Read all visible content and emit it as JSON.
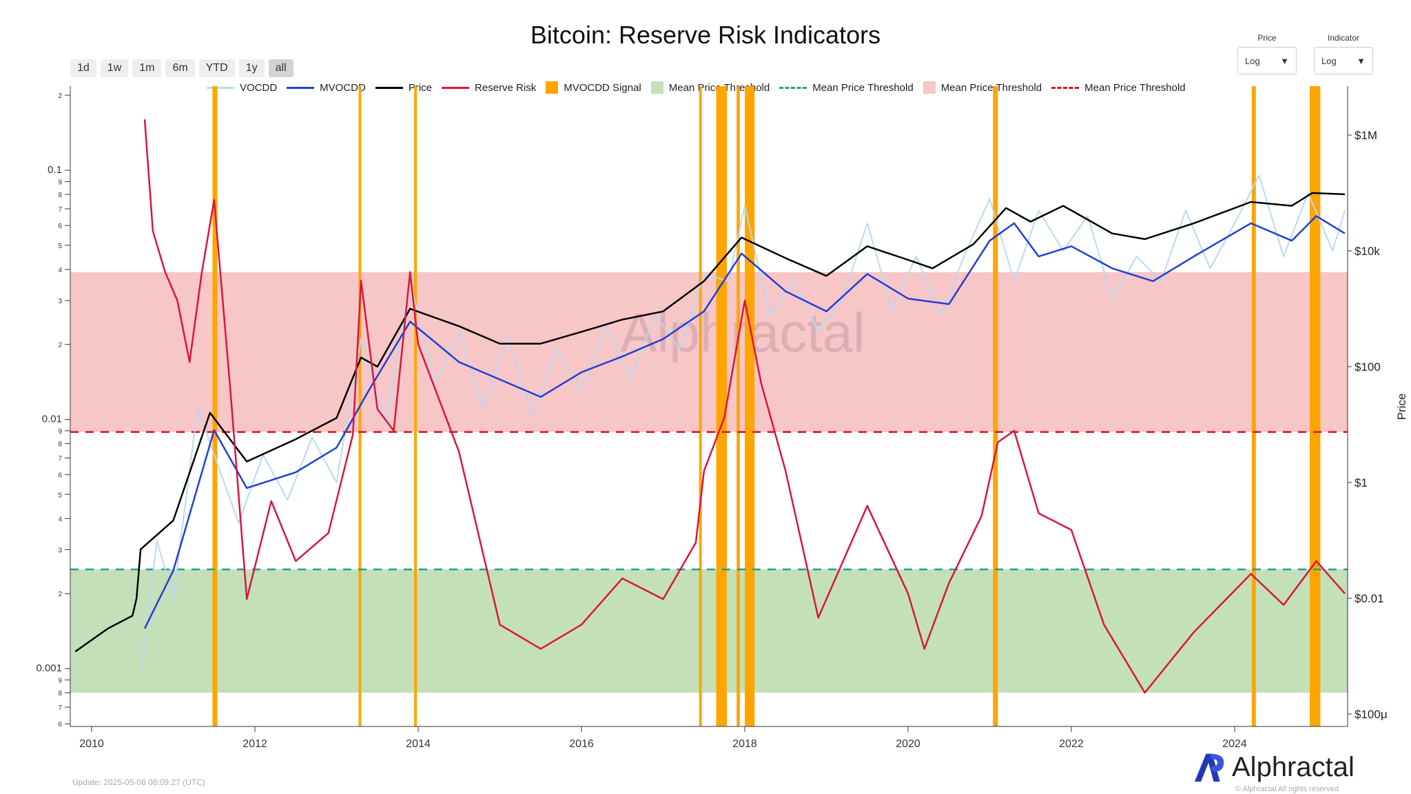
{
  "title": "Bitcoin: Reserve Risk Indicators",
  "range_buttons": [
    "1d",
    "1w",
    "1m",
    "6m",
    "YTD",
    "1y",
    "all"
  ],
  "range_selected": "all",
  "selectors": {
    "price": {
      "label": "Price",
      "value": "Log"
    },
    "indicator": {
      "label": "Indicator",
      "value": "Log"
    }
  },
  "legend": [
    {
      "label": "VOCDD",
      "kind": "line",
      "color": "#b9d9f3"
    },
    {
      "label": "MVOCDD",
      "kind": "line",
      "color": "#1f3fd6"
    },
    {
      "label": "Price",
      "kind": "line",
      "color": "#000000"
    },
    {
      "label": "Reserve Risk",
      "kind": "line",
      "color": "#dc143c"
    },
    {
      "label": "MVOCDD Signal",
      "kind": "box",
      "color": "#ffa500"
    },
    {
      "label": "Mean Price Threshold",
      "kind": "box",
      "color": "#c3e0b9"
    },
    {
      "label": "Mean Price Threshold",
      "kind": "dash",
      "color": "#20a090"
    },
    {
      "label": "Mean Price Threshold",
      "kind": "box",
      "color": "#f7c6c7"
    },
    {
      "label": "Mean Price Threshold",
      "kind": "dash",
      "color": "#e01010"
    }
  ],
  "update_text": "Update: 2025-05-08 08:09:27 (UTC)",
  "logo_text": "Alphractal",
  "copyright": "© Alphractal All rights reserved",
  "watermark": "Alphractal",
  "chart_data": {
    "type": "line",
    "title": "Bitcoin: Reserve Risk Indicators",
    "x_ticks": [
      "2010",
      "2012",
      "2014",
      "2016",
      "2018",
      "2020",
      "2022",
      "2024"
    ],
    "xlim": [
      2009.75,
      2025.4
    ],
    "left_axis": {
      "scale": "log",
      "ylim": [
        0.0006,
        0.22
      ],
      "major_labels": [
        "0.1",
        "0.01",
        "0.001"
      ],
      "minor_labels": [
        "2",
        "9",
        "8",
        "7",
        "6",
        "5",
        "4",
        "3",
        "2",
        "9",
        "8",
        "7",
        "6",
        "5",
        "4",
        "3",
        "2",
        "9",
        "8",
        "7",
        "6"
      ]
    },
    "right_axis": {
      "scale": "log",
      "label": "Price",
      "ylim": [
        6e-05,
        4000000
      ],
      "tick_labels": [
        "$1M",
        "$10k",
        "$100",
        "$1",
        "$0.01",
        "$100μ"
      ]
    },
    "bands": [
      {
        "name": "Mean Price Threshold",
        "range": [
          0.0089,
          0.039
        ],
        "color": "#f7c6c7",
        "line": 0.0089,
        "line_color": "#e01010"
      },
      {
        "name": "Mean Price Threshold",
        "range": [
          0.0008,
          0.0025
        ],
        "color": "#c3e0b9",
        "line": 0.0025,
        "line_color": "#20a090"
      }
    ],
    "signals": [
      [
        2011.48,
        2011.54
      ],
      [
        2013.27,
        2013.3
      ],
      [
        2013.95,
        2013.98
      ],
      [
        2017.44,
        2017.47
      ],
      [
        2017.65,
        2017.78
      ],
      [
        2017.9,
        2017.94
      ],
      [
        2018.0,
        2018.12
      ],
      [
        2021.04,
        2021.1
      ],
      [
        2024.21,
        2024.26
      ],
      [
        2024.92,
        2025.05
      ]
    ],
    "series": [
      {
        "name": "Reserve Risk",
        "axis": "left",
        "color": "#dc143c",
        "x": [
          2010.65,
          2010.75,
          2010.9,
          2011.05,
          2011.2,
          2011.35,
          2011.5,
          2011.7,
          2011.9,
          2012.2,
          2012.5,
          2012.9,
          2013.2,
          2013.3,
          2013.5,
          2013.7,
          2013.9,
          2014.0,
          2014.5,
          2015.0,
          2015.5,
          2016.0,
          2016.5,
          2017.0,
          2017.4,
          2017.5,
          2017.75,
          2018.0,
          2018.2,
          2018.5,
          2018.9,
          2019.5,
          2020.0,
          2020.2,
          2020.5,
          2020.9,
          2021.1,
          2021.3,
          2021.6,
          2022.0,
          2022.4,
          2022.9,
          2023.5,
          2024.2,
          2024.6,
          2025.0,
          2025.35
        ],
        "y": [
          0.16,
          0.057,
          0.039,
          0.03,
          0.017,
          0.039,
          0.076,
          0.013,
          0.0019,
          0.0047,
          0.0027,
          0.0035,
          0.0087,
          0.036,
          0.011,
          0.009,
          0.039,
          0.02,
          0.0074,
          0.0015,
          0.0012,
          0.0015,
          0.0023,
          0.0019,
          0.0032,
          0.0062,
          0.0102,
          0.03,
          0.014,
          0.0062,
          0.0016,
          0.0045,
          0.002,
          0.0012,
          0.0022,
          0.0041,
          0.0081,
          0.009,
          0.0042,
          0.0036,
          0.0015,
          0.0008,
          0.0014,
          0.0024,
          0.0018,
          0.0027,
          0.002
        ]
      },
      {
        "name": "Price",
        "axis": "right",
        "color": "#000000",
        "x": [
          2009.8,
          2010.2,
          2010.5,
          2010.55,
          2010.6,
          2011.0,
          2011.45,
          2011.9,
          2012.5,
          2013.0,
          2013.3,
          2013.5,
          2013.9,
          2014.5,
          2015.0,
          2015.5,
          2016.0,
          2016.5,
          2017.0,
          2017.5,
          2017.96,
          2018.5,
          2019.0,
          2019.5,
          2020.0,
          2020.3,
          2020.8,
          2021.2,
          2021.5,
          2021.9,
          2022.5,
          2022.9,
          2023.5,
          2024.2,
          2024.7,
          2024.95,
          2025.35
        ],
        "y": [
          0.0012,
          0.003,
          0.005,
          0.01,
          0.07,
          0.22,
          16,
          2.3,
          5.6,
          13,
          144,
          100,
          1000,
          500,
          250,
          250,
          400,
          650,
          900,
          3000,
          17000,
          7500,
          3700,
          12000,
          7000,
          5000,
          13000,
          55000,
          32000,
          60000,
          20000,
          16000,
          30000,
          70000,
          60000,
          100000,
          95000
        ]
      },
      {
        "name": "MVOCDD",
        "axis": "right",
        "color": "#1f3fd6",
        "x": [
          2010.65,
          2011.0,
          2011.5,
          2011.9,
          2012.5,
          2013.0,
          2013.4,
          2013.9,
          2014.5,
          2015.0,
          2015.5,
          2016.0,
          2016.5,
          2017.0,
          2017.5,
          2017.96,
          2018.5,
          2019.0,
          2019.5,
          2020.0,
          2020.5,
          2021.0,
          2021.3,
          2021.6,
          2022.0,
          2022.5,
          2023.0,
          2023.5,
          2024.2,
          2024.7,
          2025.0,
          2025.35
        ],
        "y": [
          0.003,
          0.03,
          8,
          0.8,
          1.5,
          4,
          40,
          600,
          120,
          60,
          30,
          80,
          150,
          300,
          900,
          9000,
          2000,
          900,
          4000,
          1500,
          1200,
          15000,
          30000,
          8000,
          12000,
          5000,
          3000,
          8000,
          30000,
          15000,
          40000,
          20000
        ]
      },
      {
        "name": "VOCDD",
        "axis": "right",
        "color": "#b9d9f3",
        "x": [
          2010.6,
          2010.8,
          2011.0,
          2011.3,
          2011.5,
          2011.8,
          2012.1,
          2012.4,
          2012.7,
          2013.0,
          2013.3,
          2013.6,
          2013.9,
          2014.2,
          2014.5,
          2014.8,
          2015.1,
          2015.4,
          2015.7,
          2016.0,
          2016.3,
          2016.6,
          2016.9,
          2017.2,
          2017.5,
          2017.8,
          2018.0,
          2018.3,
          2018.6,
          2018.9,
          2019.2,
          2019.5,
          2019.8,
          2020.1,
          2020.4,
          2020.7,
          2021.0,
          2021.3,
          2021.6,
          2021.9,
          2022.2,
          2022.5,
          2022.8,
          2023.1,
          2023.4,
          2023.7,
          2024.0,
          2024.3,
          2024.6,
          2024.9,
          2025.2,
          2025.35
        ],
        "y": [
          0.0005,
          0.1,
          0.01,
          20,
          3,
          0.2,
          3,
          0.5,
          6,
          1,
          300,
          10,
          3000,
          50,
          400,
          20,
          300,
          15,
          200,
          40,
          500,
          60,
          800,
          200,
          4000,
          3000,
          60000,
          800,
          3000,
          400,
          1500,
          30000,
          1000,
          8000,
          800,
          9000,
          80000,
          3000,
          50000,
          10000,
          40000,
          1500,
          8000,
          3000,
          50000,
          5000,
          30000,
          200000,
          8000,
          100000,
          10000,
          50000
        ]
      }
    ]
  }
}
